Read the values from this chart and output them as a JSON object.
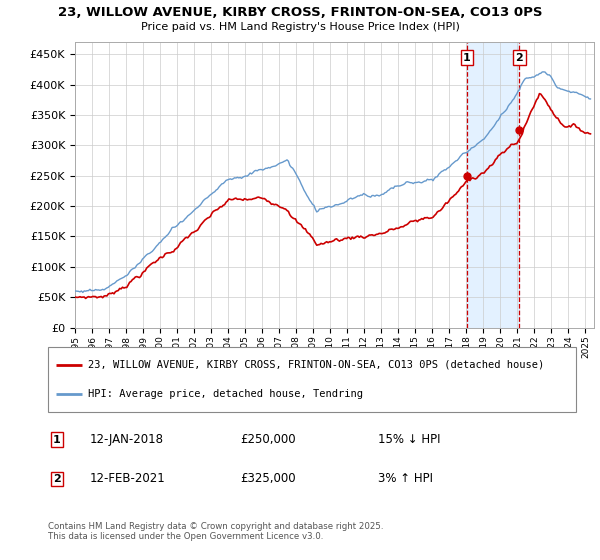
{
  "title": "23, WILLOW AVENUE, KIRBY CROSS, FRINTON-ON-SEA, CO13 0PS",
  "subtitle": "Price paid vs. HM Land Registry's House Price Index (HPI)",
  "yticks": [
    0,
    50000,
    100000,
    150000,
    200000,
    250000,
    300000,
    350000,
    400000,
    450000
  ],
  "ylim": [
    0,
    470000
  ],
  "sale1_date": "12-JAN-2018",
  "sale1_price": 250000,
  "sale1_hpi": "15% ↓ HPI",
  "sale1_x": 2018.04,
  "sale2_date": "12-FEB-2021",
  "sale2_price": 325000,
  "sale2_hpi": "3% ↑ HPI",
  "sale2_x": 2021.12,
  "legend_line1": "23, WILLOW AVENUE, KIRBY CROSS, FRINTON-ON-SEA, CO13 0PS (detached house)",
  "legend_line2": "HPI: Average price, detached house, Tendring",
  "footnote": "Contains HM Land Registry data © Crown copyright and database right 2025.\nThis data is licensed under the Open Government Licence v3.0.",
  "color_red": "#cc0000",
  "color_blue": "#6699cc",
  "color_shade": "#ddeeff",
  "grid_color": "#cccccc"
}
